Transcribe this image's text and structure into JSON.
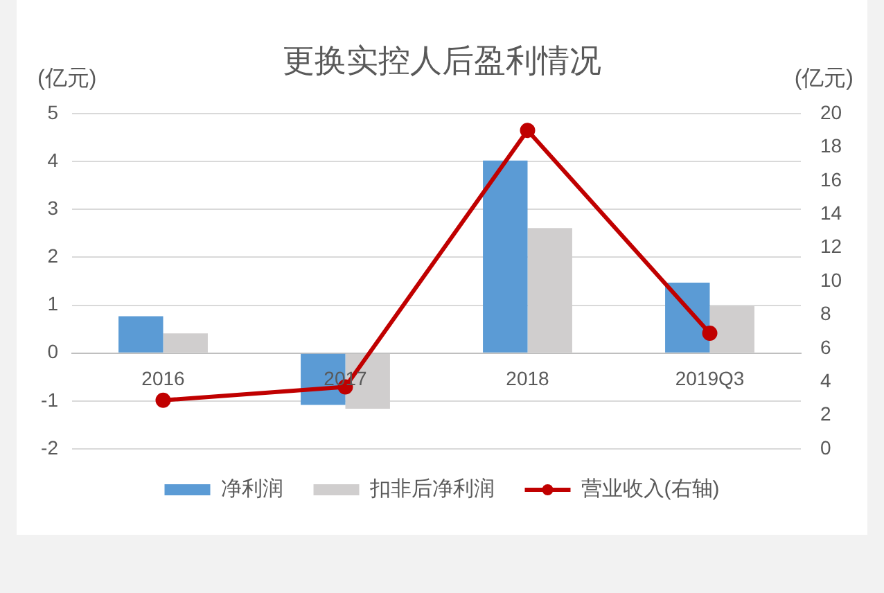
{
  "chart_data": {
    "type": "bar",
    "title": "更换实控人后盈利情况",
    "ylabel": "(亿元)",
    "y2label": "(亿元)",
    "categories": [
      "2016",
      "2017",
      "2018",
      "2019Q3"
    ],
    "series": [
      {
        "name": "净利润",
        "color": "#5b9bd5",
        "values": [
          0.77,
          -1.08,
          4.02,
          1.47
        ]
      },
      {
        "name": "扣非后净利润",
        "color": "#d0cece",
        "values": [
          0.41,
          -1.16,
          2.61,
          0.98
        ]
      },
      {
        "name": "营业收入(右轴)",
        "type": "line",
        "axis": "y2",
        "color": "#c00000",
        "values": [
          2.9,
          3.7,
          19.0,
          6.9
        ]
      }
    ],
    "ylim": [
      -2,
      5
    ],
    "yticks": [
      -2,
      -1,
      0,
      1,
      2,
      3,
      4,
      5
    ],
    "y2lim": [
      0,
      20
    ],
    "y2ticks": [
      0,
      2,
      4,
      6,
      8,
      10,
      12,
      14,
      16,
      18,
      20
    ],
    "grid": "y",
    "legend": "bottom",
    "marker": "circle",
    "line_style": "solid"
  }
}
